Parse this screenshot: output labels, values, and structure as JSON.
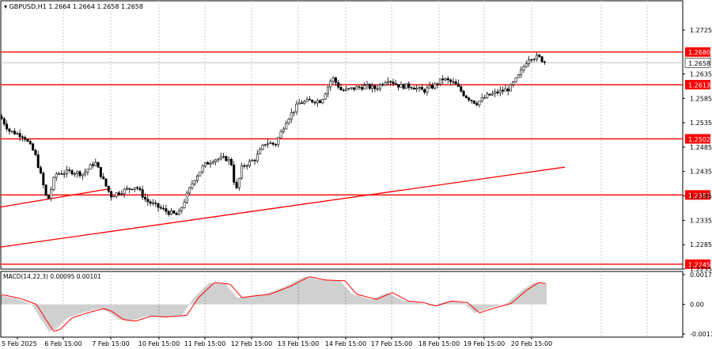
{
  "header": {
    "symbol_label": "GBPUSD,H1",
    "ohlc_label": "1.2664 1.2664 1.2658 1.2658"
  },
  "macd": {
    "label": "MACD(14,22,3) 0.00095 0.00101",
    "axis_labels": [
      "0.00177",
      "0.00",
      "-0.00176"
    ],
    "ylim": [
      -0.00176,
      0.00177
    ]
  },
  "colors": {
    "level_line": "#ff0000",
    "level_tag_bg": "#ff0000",
    "level_tag_text": "#ffffff",
    "price_tag_bg": "#ffffff",
    "candle": "#000000",
    "grid": "#c8c8c8",
    "macd_hist": "#a0a0a0",
    "macd_signal": "#ff0000"
  },
  "chart_data": {
    "type": "candlestick",
    "ylim": [
      1.2235,
      1.2785
    ],
    "y_ticks": [
      "1.2725",
      "1.2635",
      "1.2585",
      "1.2535",
      "1.2485",
      "1.2435",
      "1.2385",
      "1.2335",
      "1.2285",
      "1.2235"
    ],
    "current_price": "1.2658",
    "x_ticks": [
      "5 Feb 2025",
      "6 Feb 15:00",
      "7 Feb 15:00",
      "10 Feb 15:00",
      "11 Feb 15:00",
      "12 Feb 15:00",
      "13 Feb 15:00",
      "14 Feb 15:00",
      "17 Feb 15:00",
      "18 Feb 15:00",
      "19 Feb 15:00",
      "20 Feb 15:00"
    ],
    "levels": [
      {
        "label": "1.2680",
        "value": 1.268
      },
      {
        "label": "1.2613",
        "value": 1.2613
      },
      {
        "label": "1.2502",
        "value": 1.2502
      },
      {
        "label": "1.2387",
        "value": 1.2387
      },
      {
        "label": "1.2245",
        "value": 1.2245
      }
    ],
    "trendlines": [
      {
        "x": [
          0,
          140
        ],
        "y": [
          1.2362,
          1.24
        ]
      },
      {
        "x": [
          0,
          714
        ],
        "y": [
          1.228,
          1.2444
        ]
      }
    ],
    "price_path": [
      [
        0,
        1.2548
      ],
      [
        12,
        1.2518
      ],
      [
        30,
        1.2508
      ],
      [
        44,
        1.2472
      ],
      [
        52,
        1.2425
      ],
      [
        60,
        1.2372
      ],
      [
        70,
        1.243
      ],
      [
        90,
        1.2435
      ],
      [
        105,
        1.243
      ],
      [
        120,
        1.2455
      ],
      [
        132,
        1.2412
      ],
      [
        140,
        1.2385
      ],
      [
        150,
        1.2392
      ],
      [
        160,
        1.2398
      ],
      [
        172,
        1.2405
      ],
      [
        185,
        1.2375
      ],
      [
        200,
        1.2362
      ],
      [
        212,
        1.2352
      ],
      [
        225,
        1.2345
      ],
      [
        235,
        1.2382
      ],
      [
        245,
        1.2418
      ],
      [
        258,
        1.2448
      ],
      [
        270,
        1.246
      ],
      [
        285,
        1.2462
      ],
      [
        292,
        1.2455
      ],
      [
        298,
        1.2392
      ],
      [
        306,
        1.2445
      ],
      [
        322,
        1.246
      ],
      [
        336,
        1.2495
      ],
      [
        348,
        1.249
      ],
      [
        362,
        1.254
      ],
      [
        378,
        1.2575
      ],
      [
        392,
        1.258
      ],
      [
        406,
        1.258
      ],
      [
        420,
        1.2628
      ],
      [
        432,
        1.26
      ],
      [
        446,
        1.2605
      ],
      [
        462,
        1.261
      ],
      [
        475,
        1.2605
      ],
      [
        490,
        1.2625
      ],
      [
        505,
        1.261
      ],
      [
        520,
        1.261
      ],
      [
        535,
        1.26
      ],
      [
        550,
        1.2612
      ],
      [
        560,
        1.2625
      ],
      [
        575,
        1.2615
      ],
      [
        588,
        1.259
      ],
      [
        602,
        1.2575
      ],
      [
        616,
        1.259
      ],
      [
        630,
        1.2598
      ],
      [
        644,
        1.2605
      ],
      [
        656,
        1.2632
      ],
      [
        668,
        1.2668
      ],
      [
        680,
        1.267
      ],
      [
        690,
        1.2658
      ]
    ],
    "macd_path": [
      [
        0,
        0.00055
      ],
      [
        20,
        0.00035
      ],
      [
        40,
        0.0
      ],
      [
        52,
        -0.0009
      ],
      [
        62,
        -0.0016
      ],
      [
        70,
        -0.0015
      ],
      [
        85,
        -0.0008
      ],
      [
        105,
        -0.0005
      ],
      [
        125,
        -0.00025
      ],
      [
        135,
        -0.0004
      ],
      [
        150,
        -0.0009
      ],
      [
        165,
        -0.001
      ],
      [
        185,
        -0.0007
      ],
      [
        205,
        -0.00075
      ],
      [
        230,
        -0.00065
      ],
      [
        245,
        0.0004
      ],
      [
        265,
        0.0013
      ],
      [
        285,
        0.0012
      ],
      [
        300,
        0.0004
      ],
      [
        315,
        0.0005
      ],
      [
        335,
        0.0006
      ],
      [
        360,
        0.00105
      ],
      [
        385,
        0.00165
      ],
      [
        405,
        0.00145
      ],
      [
        430,
        0.0014
      ],
      [
        445,
        0.0006
      ],
      [
        470,
        0.0003
      ],
      [
        490,
        0.0007
      ],
      [
        510,
        0.0002
      ],
      [
        530,
        0.0001
      ],
      [
        545,
        -0.0001
      ],
      [
        565,
        0.0002
      ],
      [
        585,
        0.0001
      ],
      [
        600,
        -0.0005
      ],
      [
        620,
        -0.0002
      ],
      [
        640,
        5e-05
      ],
      [
        660,
        0.00085
      ],
      [
        675,
        0.0013
      ],
      [
        690,
        0.0012
      ]
    ]
  }
}
